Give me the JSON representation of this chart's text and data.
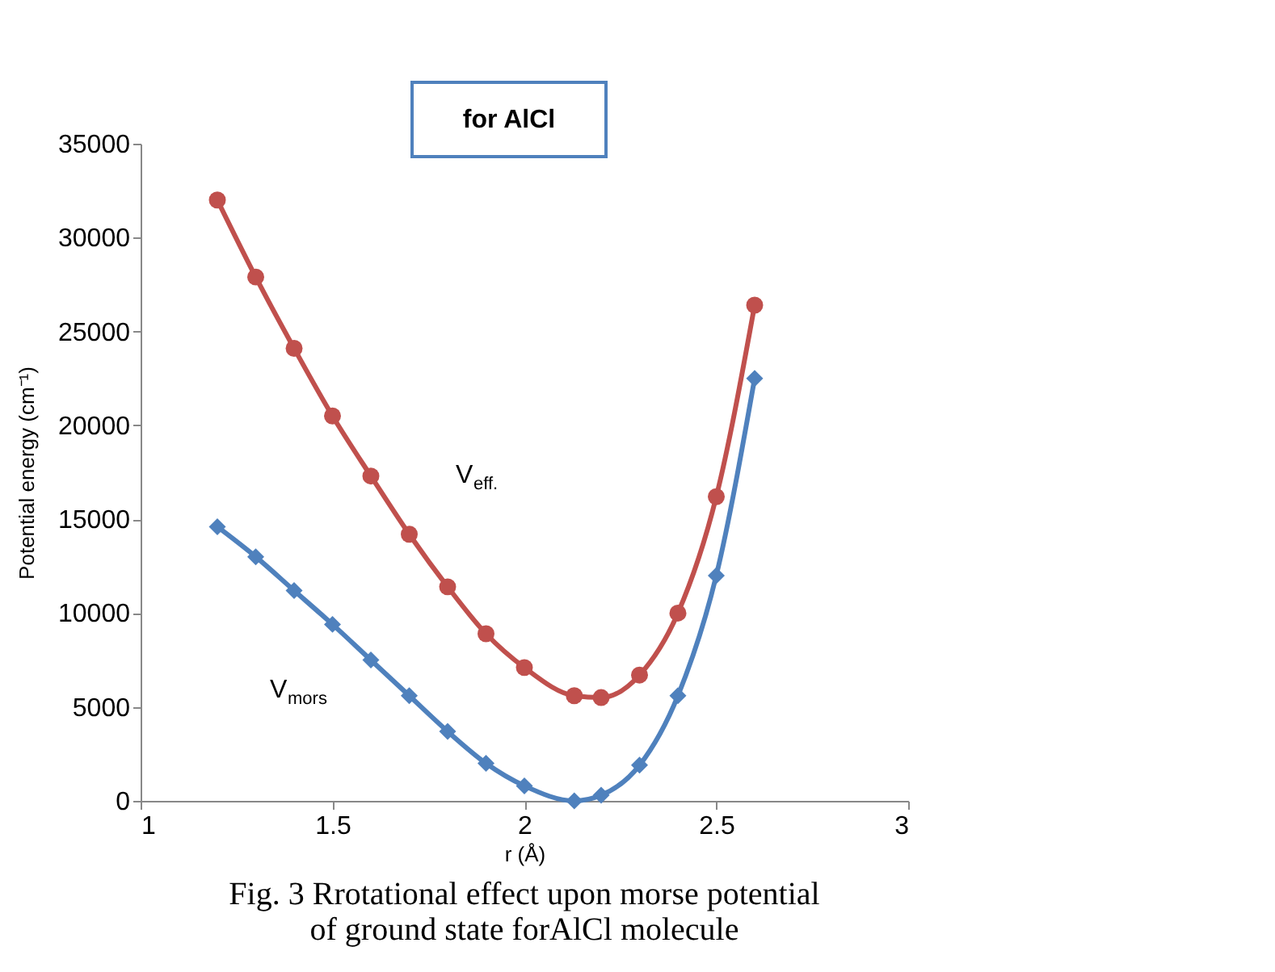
{
  "chart_data": {
    "type": "line",
    "title": "Fig. 3 Rrotational effect upon  morse potential\nof ground state forAlCl molecule",
    "xlabel": "r (Å)",
    "ylabel": "Potential energy (cm⁻¹)",
    "x": [
      1.2,
      1.3,
      1.4,
      1.5,
      1.6,
      1.7,
      1.8,
      1.9,
      2.0,
      2.13,
      2.2,
      2.3,
      2.4,
      2.5,
      2.6
    ],
    "series": [
      {
        "color": "#c0504d",
        "marker": "circle",
        "values": [
          32000,
          27900,
          24100,
          20500,
          17300,
          14200,
          11400,
          8900,
          7100,
          5600,
          5500,
          6700,
          10000,
          16200,
          26400
        ]
      },
      {
        "color": "#4f81bd",
        "marker": "diamond",
        "values": [
          14600,
          13000,
          11200,
          9400,
          7500,
          5600,
          3700,
          2000,
          800,
          0,
          300,
          1900,
          5600,
          12000,
          22500
        ]
      }
    ],
    "annotations": [
      "for AlCl",
      "V$_{eff.}$",
      "V$_{mors}$"
    ],
    "xlim": [
      1,
      3
    ],
    "xticks": [
      1,
      1.5,
      2,
      2.5,
      3
    ],
    "ylim": [
      0,
      35000
    ],
    "yticks": [
      0,
      5000,
      10000,
      15000,
      20000,
      25000,
      30000,
      35000
    ],
    "grid": false
  }
}
